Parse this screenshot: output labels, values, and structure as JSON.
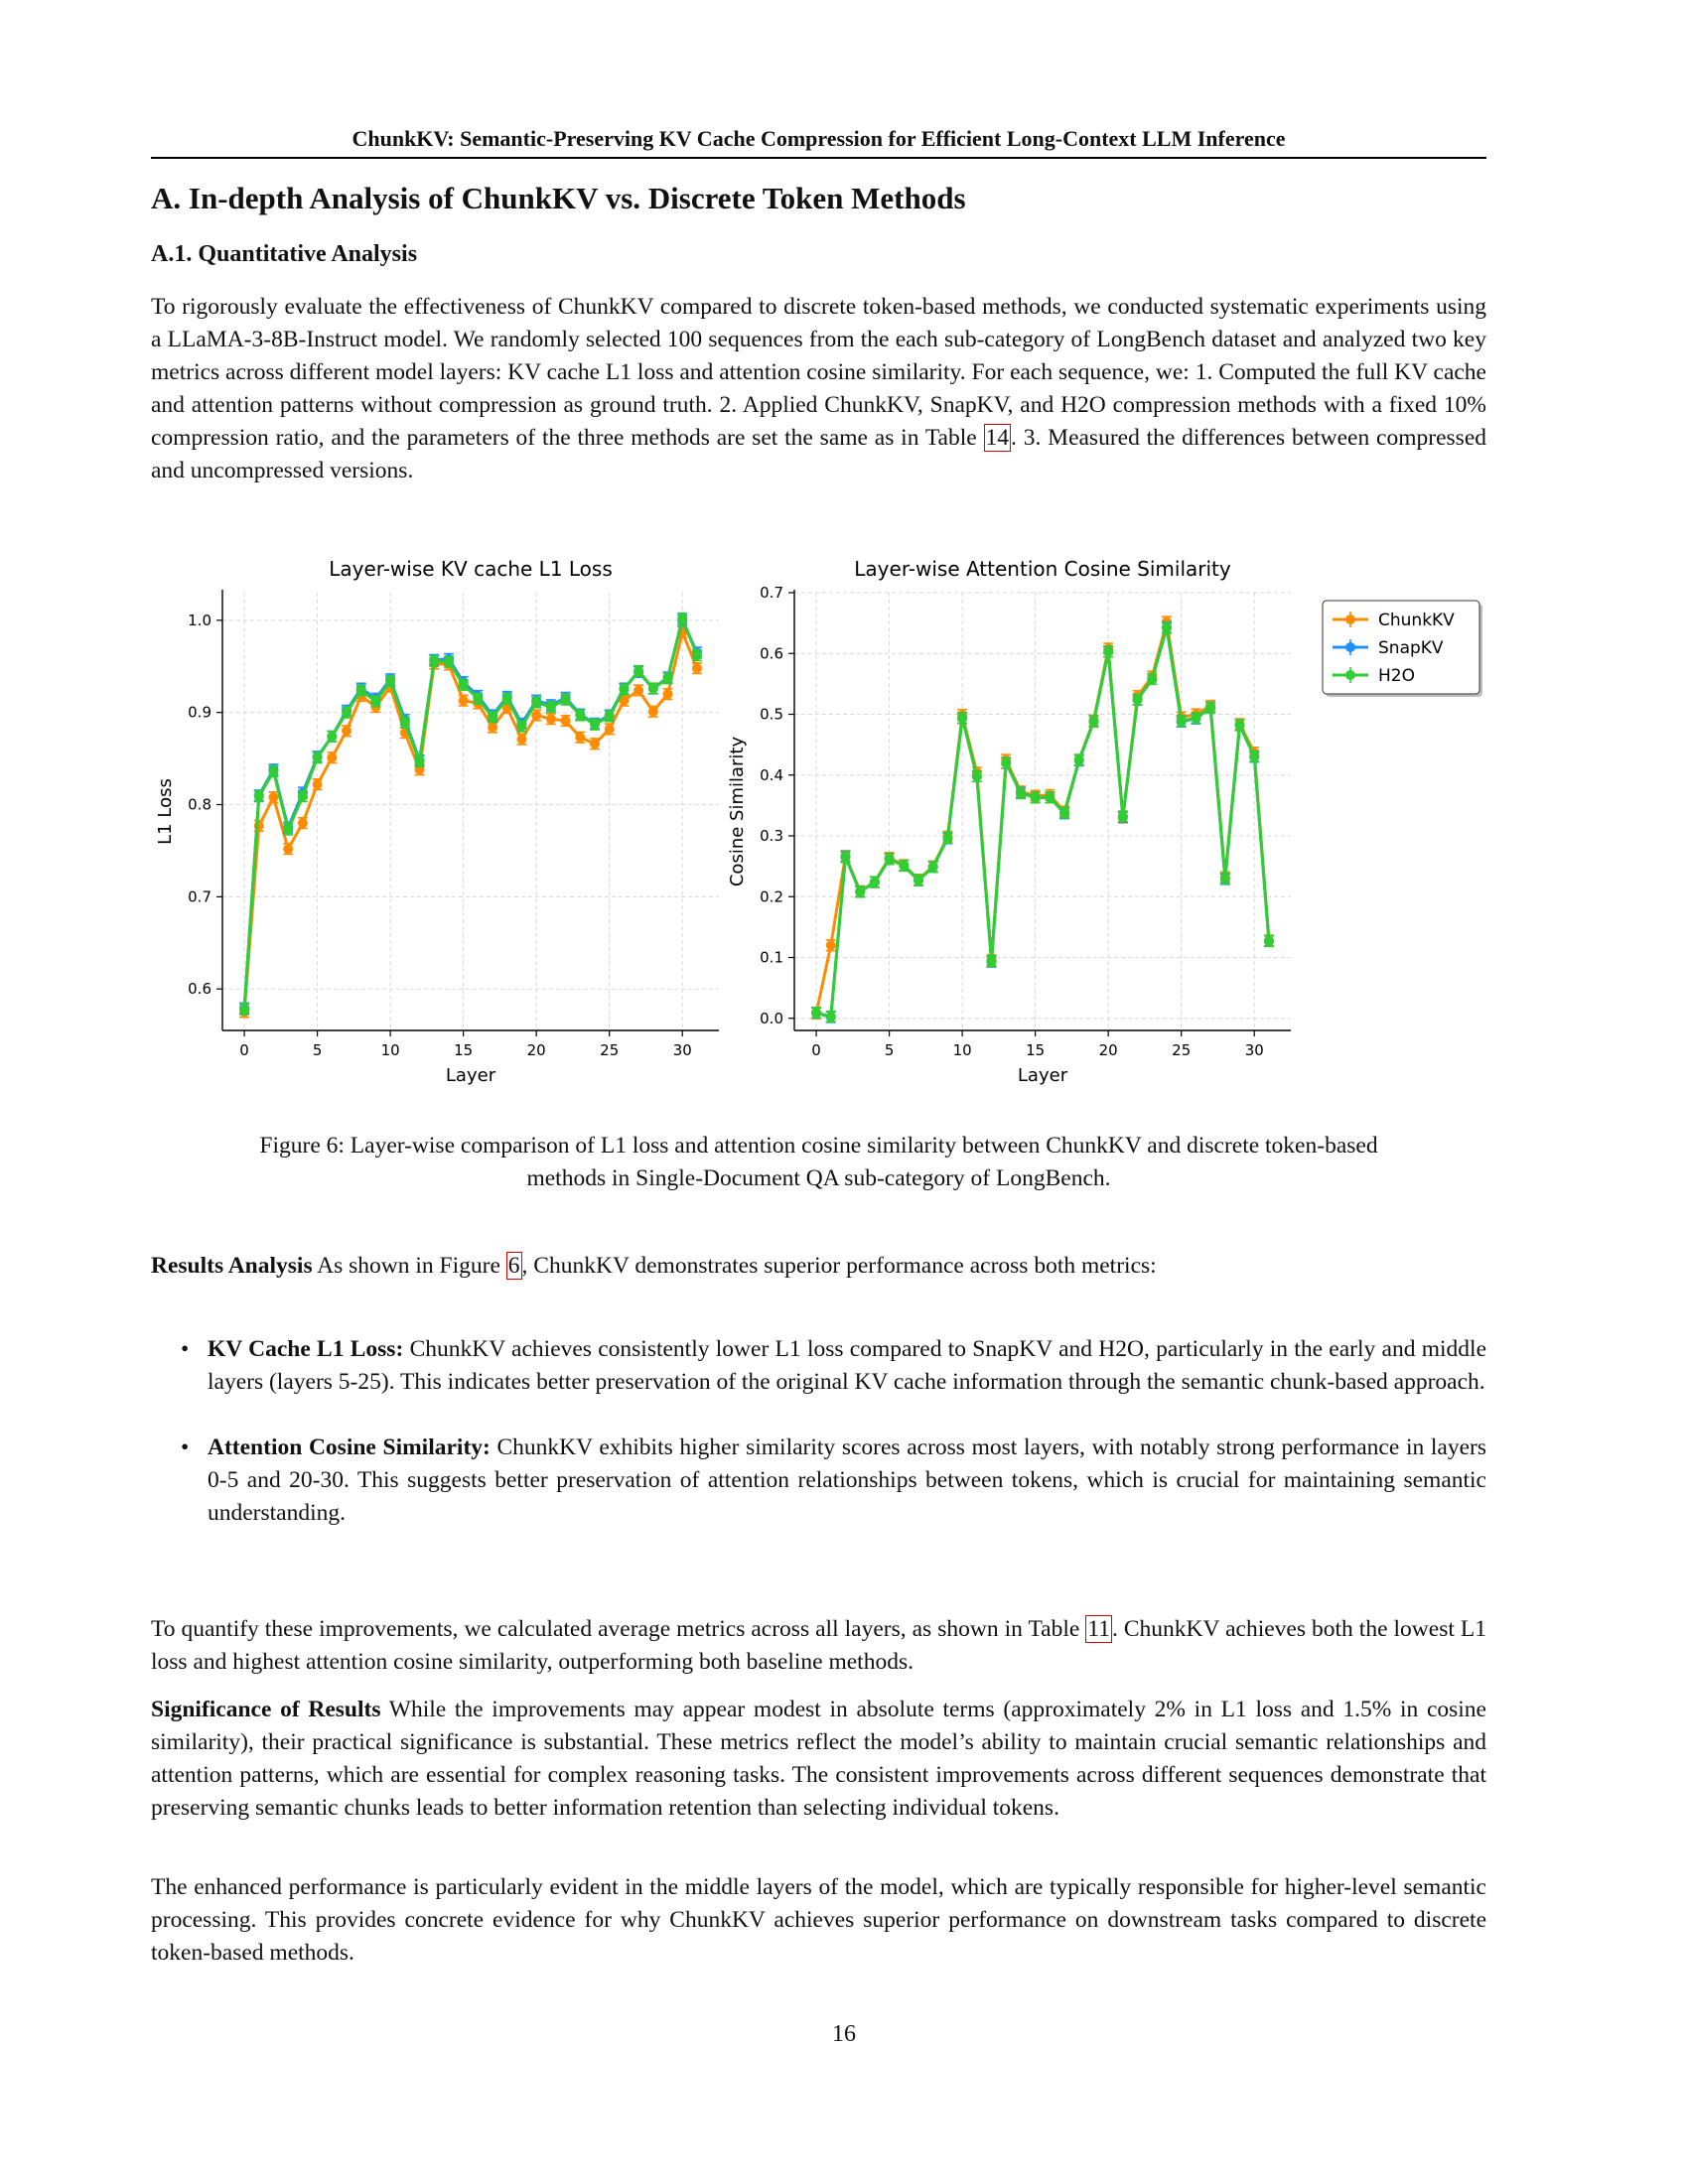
{
  "header": {
    "running_title": "ChunkKV: Semantic-Preserving KV Cache Compression for Efficient Long-Context LLM Inference"
  },
  "section": {
    "title": "A. In-depth Analysis of ChunkKV vs. Discrete Token Methods"
  },
  "subsection": {
    "title": "A.1. Quantitative Analysis"
  },
  "intro": {
    "text_before_ref": "To rigorously evaluate the effectiveness of ChunkKV compared to discrete token-based methods, we conducted systematic experiments using a LLaMA-3-8B-Instruct model. We randomly selected 100 sequences from the each sub-category of LongBench dataset and analyzed two key metrics across different model layers: KV cache L1 loss and attention cosine similarity. For each sequence, we: 1. Computed the full KV cache and attention patterns without compression as ground truth. 2. Applied ChunkKV, SnapKV, and H2O compression methods with a fixed 10% compression ratio, and the parameters of the three methods are set the same as in Table ",
    "ref": "14",
    "text_after_ref": ". 3. Measured the differences between compressed and uncompressed versions."
  },
  "figure": {
    "caption_line1": "Figure 6: Layer-wise comparison of L1 loss and attention cosine similarity between ChunkKV and discrete token-based",
    "caption_line2": "methods in Single-Document QA sub-category of LongBench."
  },
  "chart_data": [
    {
      "type": "line",
      "title": "Layer-wise KV cache L1 Loss",
      "xlabel": "Layer",
      "ylabel": "L1 Loss",
      "xlim": [
        -1.5,
        32.5
      ],
      "ylim": [
        0.555,
        1.03
      ],
      "xticks": [
        0,
        5,
        10,
        15,
        20,
        25,
        30
      ],
      "yticks": [
        0.6,
        0.7,
        0.8,
        0.9,
        1.0
      ],
      "ytick_labels": [
        "0.6",
        "0.7",
        "0.8",
        "0.9",
        "1.0"
      ],
      "grid": true,
      "legend": "none",
      "x": [
        0,
        1,
        2,
        3,
        4,
        5,
        6,
        7,
        8,
        9,
        10,
        11,
        12,
        13,
        14,
        15,
        16,
        17,
        18,
        19,
        20,
        21,
        22,
        23,
        24,
        25,
        26,
        27,
        28,
        29,
        30,
        31
      ],
      "series": [
        {
          "name": "ChunkKV",
          "color": "#ff8c00",
          "values": [
            0.575,
            0.777,
            0.808,
            0.752,
            0.78,
            0.822,
            0.851,
            0.88,
            0.918,
            0.906,
            0.928,
            0.878,
            0.838,
            0.953,
            0.952,
            0.913,
            0.91,
            0.884,
            0.905,
            0.871,
            0.897,
            0.893,
            0.891,
            0.873,
            0.866,
            0.882,
            0.913,
            0.924,
            0.901,
            0.92,
            0.987,
            0.948
          ]
        },
        {
          "name": "SnapKV",
          "color": "#1e90ff",
          "values": [
            0.579,
            0.81,
            0.838,
            0.775,
            0.813,
            0.852,
            0.874,
            0.902,
            0.926,
            0.915,
            0.936,
            0.892,
            0.848,
            0.957,
            0.958,
            0.933,
            0.918,
            0.897,
            0.917,
            0.888,
            0.913,
            0.908,
            0.916,
            0.898,
            0.888,
            0.897,
            0.926,
            0.944,
            0.926,
            0.938,
            1.0,
            0.965
          ]
        },
        {
          "name": "H2O",
          "color": "#32cd32",
          "values": [
            0.578,
            0.809,
            0.836,
            0.773,
            0.809,
            0.851,
            0.874,
            0.9,
            0.924,
            0.912,
            0.934,
            0.889,
            0.847,
            0.956,
            0.955,
            0.93,
            0.915,
            0.895,
            0.915,
            0.885,
            0.911,
            0.906,
            0.914,
            0.897,
            0.887,
            0.896,
            0.925,
            0.945,
            0.926,
            0.937,
            1.002,
            0.962
          ]
        }
      ]
    },
    {
      "type": "line",
      "title": "Layer-wise Attention Cosine Similarity",
      "xlabel": "Layer",
      "ylabel": "Cosine Similarity",
      "xlim": [
        -1.5,
        32.5
      ],
      "ylim": [
        -0.02,
        0.7
      ],
      "xticks": [
        0,
        5,
        10,
        15,
        20,
        25,
        30
      ],
      "yticks": [
        0.0,
        0.1,
        0.2,
        0.3,
        0.4,
        0.5,
        0.6,
        0.7
      ],
      "ytick_labels": [
        "0.0",
        "0.1",
        "0.2",
        "0.3",
        "0.4",
        "0.5",
        "0.6",
        "0.7"
      ],
      "grid": true,
      "legend": "outside-right",
      "x": [
        0,
        1,
        2,
        3,
        4,
        5,
        6,
        7,
        8,
        9,
        10,
        11,
        12,
        13,
        14,
        15,
        16,
        17,
        18,
        19,
        20,
        21,
        22,
        23,
        24,
        25,
        26,
        27,
        28,
        29,
        30,
        31
      ],
      "series": [
        {
          "name": "ChunkKV",
          "color": "#ff8c00",
          "values": [
            0.008,
            0.12,
            0.267,
            0.209,
            0.224,
            0.264,
            0.252,
            0.228,
            0.25,
            0.299,
            0.499,
            0.404,
            0.096,
            0.425,
            0.373,
            0.366,
            0.367,
            0.34,
            0.425,
            0.49,
            0.608,
            0.33,
            0.53,
            0.562,
            0.652,
            0.495,
            0.5,
            0.514,
            0.232,
            0.484,
            0.437,
            0.128
          ]
        },
        {
          "name": "SnapKV",
          "color": "#1e90ff",
          "values": [
            0.009,
            0.002,
            0.266,
            0.208,
            0.224,
            0.262,
            0.251,
            0.227,
            0.249,
            0.296,
            0.494,
            0.398,
            0.093,
            0.42,
            0.371,
            0.363,
            0.363,
            0.337,
            0.424,
            0.488,
            0.603,
            0.331,
            0.524,
            0.558,
            0.643,
            0.488,
            0.493,
            0.511,
            0.229,
            0.482,
            0.43,
            0.127
          ]
        },
        {
          "name": "H2O",
          "color": "#32cd32",
          "values": [
            0.009,
            0.003,
            0.265,
            0.208,
            0.224,
            0.262,
            0.251,
            0.227,
            0.249,
            0.297,
            0.494,
            0.398,
            0.094,
            0.42,
            0.37,
            0.363,
            0.363,
            0.338,
            0.425,
            0.488,
            0.603,
            0.332,
            0.524,
            0.558,
            0.642,
            0.489,
            0.494,
            0.511,
            0.23,
            0.482,
            0.431,
            0.127
          ]
        }
      ]
    }
  ],
  "results": {
    "lead": "Results Analysis",
    "text_before_ref": " As shown in Figure ",
    "ref": "6",
    "text_after_ref": ", ChunkKV demonstrates superior performance across both metrics:"
  },
  "bullets": [
    {
      "bullet": "•",
      "lead": "KV Cache L1 Loss:",
      "text": " ChunkKV achieves consistently lower L1 loss compared to SnapKV and H2O, particularly in the early and middle layers (layers 5-25). This indicates better preservation of the original KV cache information through the semantic chunk-based approach."
    },
    {
      "bullet": "•",
      "lead": "Attention Cosine Similarity:",
      "text": " ChunkKV exhibits higher similarity scores across most layers, with notably strong performance in layers 0-5 and 20-30. This suggests better preservation of attention relationships between tokens, which is crucial for maintaining semantic understanding."
    }
  ],
  "quantify": {
    "text_before_ref": "To quantify these improvements, we calculated average metrics across all layers, as shown in Table ",
    "ref": "11",
    "text_after_ref": ". ChunkKV achieves both the lowest L1 loss and highest attention cosine similarity, outperforming both baseline methods."
  },
  "significance": {
    "lead": "Significance of Results",
    "text": " While the improvements may appear modest in absolute terms (approximately 2% in L1 loss and 1.5% in cosine similarity), their practical significance is substantial. These metrics reflect the model’s ability to maintain crucial semantic relationships and attention patterns, which are essential for complex reasoning tasks. The consistent improvements across different sequences demonstrate that preserving semantic chunks leads to better information retention than selecting individual tokens."
  },
  "enhanced": {
    "text": "The enhanced performance is particularly evident in the middle layers of the model, which are typically responsible for higher-level semantic processing. This provides concrete evidence for why ChunkKV achieves superior performance on downstream tasks compared to discrete token-based methods."
  },
  "footer": {
    "page_number": "16"
  }
}
